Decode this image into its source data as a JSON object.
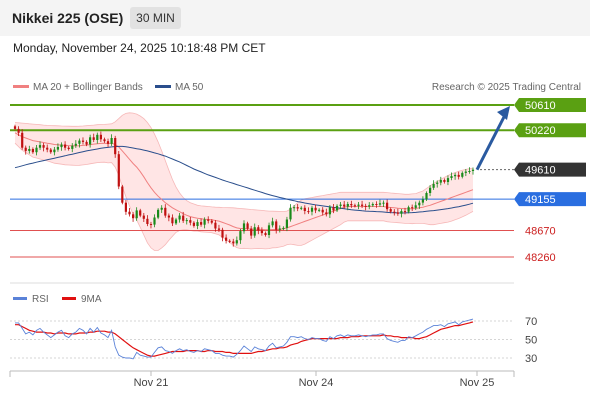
{
  "header": {
    "title": "Nikkei 225 (OSE)",
    "timeframe": "30 MIN",
    "datetime": "Monday, November 24, 2025 10:18:48 PM CET"
  },
  "legend": {
    "bollinger": "MA 20 + Bollinger Bands",
    "ma50": "MA 50",
    "credit": "Research © 2025 Trading Central",
    "rsi": "RSI",
    "ma9": "9MA"
  },
  "colors": {
    "bollinger": "#f08080",
    "band_fill": "#ffe0e0",
    "ma50": "#2a4e8c",
    "resistance": "#5aa012",
    "support": "#e05050",
    "pivot": "#2a6ee0",
    "current": "#333333",
    "arrow": "#2a5aa0",
    "rsi": "#5a82d8",
    "rsi_ma": "#e01010",
    "bull": "#1a8a1a",
    "bear": "#c01010"
  },
  "chart_data": [
    {
      "type": "candlestick",
      "title": "Nikkei 225 (OSE)",
      "x_ticks": [
        "Nov 21",
        "Nov 24",
        "Nov 25"
      ],
      "levels": [
        {
          "label": "50610",
          "value": 50610,
          "kind": "resistance"
        },
        {
          "label": "50220",
          "value": 50220,
          "kind": "resistance"
        },
        {
          "label": "49610",
          "value": 49610,
          "kind": "current"
        },
        {
          "label": "49155",
          "value": 49155,
          "kind": "pivot"
        },
        {
          "label": "48670",
          "value": 48670,
          "kind": "support"
        },
        {
          "label": "48260",
          "value": 48260,
          "kind": "support"
        }
      ],
      "close": [
        50240,
        50180,
        49950,
        49900,
        49930,
        49880,
        49950,
        49990,
        49950,
        49920,
        49880,
        49920,
        49960,
        50000,
        49950,
        49930,
        49980,
        50010,
        50060,
        50040,
        50000,
        50110,
        50070,
        50150,
        50080,
        50050,
        50010,
        50100,
        49850,
        49350,
        49100,
        48960,
        48920,
        48860,
        48980,
        48900,
        48850,
        48770,
        48760,
        48870,
        48990,
        49020,
        48900,
        48870,
        48780,
        48840,
        48900,
        48820,
        48830,
        48790,
        48740,
        48800,
        48760,
        48840,
        48820,
        48790,
        48700,
        48680,
        48560,
        48510,
        48500,
        48470,
        48520,
        48660,
        48780,
        48700,
        48590,
        48720,
        48670,
        48630,
        48600,
        48750,
        48810,
        48680,
        48700,
        48710,
        48840,
        49020,
        49030,
        49010,
        49020,
        48970,
        48960,
        49020,
        48980,
        48990,
        48950,
        48920,
        49030,
        48980,
        49050,
        49070,
        49040,
        49080,
        49060,
        49050,
        49070,
        49050,
        49040,
        49060,
        49080,
        49070,
        49090,
        49100,
        49000,
        48960,
        48950,
        48930,
        48970,
        48960,
        49030,
        49020,
        49060,
        49100,
        49150,
        49250,
        49330,
        49390,
        49410,
        49450,
        49420,
        49480,
        49510,
        49530,
        49500,
        49560,
        49580,
        49590,
        49610
      ],
      "ma20": [
        50180,
        50150,
        50120,
        50100,
        50080,
        50060,
        50050,
        50040,
        50030,
        50020,
        50010,
        50000,
        49995,
        49990,
        49985,
        49982,
        49980,
        49978,
        49980,
        49985,
        49990,
        49998,
        50005,
        50012,
        50016,
        50018,
        50015,
        50020,
        50000,
        49960,
        49900,
        49835,
        49770,
        49705,
        49650,
        49580,
        49500,
        49410,
        49330,
        49260,
        49200,
        49150,
        49100,
        49060,
        49020,
        48990,
        48960,
        48930,
        48905,
        48885,
        48870,
        48860,
        48850,
        48845,
        48840,
        48835,
        48825,
        48815,
        48795,
        48775,
        48755,
        48730,
        48710,
        48700,
        48700,
        48695,
        48690,
        48690,
        48688,
        48685,
        48680,
        48680,
        48685,
        48685,
        48690,
        48695,
        48710,
        48730,
        48750,
        48770,
        48790,
        48810,
        48830,
        48850,
        48870,
        48890,
        48910,
        48930,
        48950,
        48970,
        48990,
        49010,
        49030,
        49040,
        49040,
        49040,
        49040,
        49040,
        49040,
        49040,
        49040,
        49040,
        49040,
        49040,
        49030,
        49025,
        49020,
        49015,
        49010,
        49005,
        49005,
        49005,
        49010,
        49020,
        49030,
        49045,
        49060,
        49080,
        49100,
        49120,
        49140,
        49160,
        49180,
        49200,
        49220,
        49240,
        49260,
        49280,
        49300
      ],
      "bb_upper": [
        50340,
        50335,
        50330,
        50325,
        50320,
        50315,
        50310,
        50305,
        50300,
        50295,
        50292,
        50290,
        50288,
        50286,
        50284,
        50282,
        50281,
        50280,
        50282,
        50286,
        50290,
        50295,
        50300,
        50305,
        50308,
        50310,
        50315,
        50320,
        50350,
        50400,
        50450,
        50480,
        50490,
        50485,
        50470,
        50440,
        50400,
        50340,
        50260,
        50160,
        50040,
        49900,
        49750,
        49600,
        49460,
        49340,
        49250,
        49180,
        49130,
        49100,
        49080,
        49060,
        49050,
        49045,
        49040,
        49035,
        49030,
        49028,
        49026,
        49024,
        49022,
        49020,
        49015,
        49010,
        49005,
        49000,
        48995,
        48990,
        48985,
        48980,
        48975,
        48970,
        48968,
        48966,
        48965,
        48964,
        48970,
        49000,
        49050,
        49100,
        49140,
        49160,
        49170,
        49180,
        49190,
        49200,
        49210,
        49220,
        49230,
        49240,
        49250,
        49260,
        49260,
        49260,
        49260,
        49260,
        49260,
        49260,
        49260,
        49260,
        49260,
        49260,
        49260,
        49260,
        49255,
        49250,
        49245,
        49240,
        49235,
        49230,
        49230,
        49235,
        49240,
        49260,
        49280,
        49320,
        49360,
        49400,
        49430,
        49460,
        49490,
        49520,
        49545,
        49565,
        49585,
        49600,
        49615,
        49625,
        49635
      ],
      "bb_lower": [
        50020,
        49965,
        49910,
        49875,
        49840,
        49805,
        49790,
        49775,
        49760,
        49745,
        49728,
        49710,
        49702,
        49694,
        49686,
        49682,
        49679,
        49676,
        49678,
        49684,
        49690,
        49701,
        49710,
        49719,
        49724,
        49726,
        49715,
        49720,
        49650,
        49520,
        49350,
        49190,
        49050,
        48925,
        48830,
        48720,
        48600,
        48480,
        48400,
        48360,
        48360,
        48400,
        48450,
        48520,
        48580,
        48640,
        48670,
        48680,
        48680,
        48670,
        48660,
        48660,
        48650,
        48645,
        48640,
        48635,
        48620,
        48602,
        48564,
        48526,
        48488,
        48440,
        48405,
        48390,
        48395,
        48390,
        48385,
        48390,
        48391,
        48390,
        48385,
        48390,
        48402,
        48404,
        48415,
        48426,
        48450,
        48460,
        48450,
        48440,
        48440,
        48460,
        48490,
        48520,
        48550,
        48580,
        48610,
        48640,
        48670,
        48700,
        48730,
        48760,
        48800,
        48820,
        48820,
        48820,
        48820,
        48820,
        48820,
        48820,
        48820,
        48820,
        48820,
        48820,
        48805,
        48800,
        48795,
        48790,
        48785,
        48780,
        48780,
        48775,
        48780,
        48780,
        48780,
        48770,
        48760,
        48760,
        48770,
        48780,
        48790,
        48800,
        48815,
        48835,
        48855,
        48880,
        48905,
        48935,
        48965
      ],
      "ma50": [
        49640,
        49655,
        49670,
        49685,
        49700,
        49712,
        49725,
        49738,
        49750,
        49762,
        49775,
        49788,
        49800,
        49812,
        49825,
        49838,
        49850,
        49862,
        49875,
        49888,
        49900,
        49910,
        49920,
        49930,
        49940,
        49948,
        49955,
        49962,
        49967,
        49970,
        49970,
        49965,
        49955,
        49945,
        49935,
        49925,
        49912,
        49900,
        49885,
        49870,
        49855,
        49837,
        49820,
        49797,
        49775,
        49752,
        49730,
        49703,
        49675,
        49648,
        49620,
        49597,
        49575,
        49552,
        49530,
        49510,
        49490,
        49470,
        49450,
        49432,
        49415,
        49398,
        49380,
        49363,
        49345,
        49328,
        49310,
        49293,
        49275,
        49258,
        49240,
        49225,
        49210,
        49195,
        49180,
        49167,
        49155,
        49142,
        49130,
        49117,
        49105,
        49095,
        49085,
        49075,
        49065,
        49058,
        49050,
        49043,
        49035,
        49027,
        49020,
        49013,
        49005,
        48998,
        48990,
        48985,
        48980,
        48975,
        48970,
        48967,
        48965,
        48962,
        48960,
        48955,
        48950,
        48947,
        48945,
        48942,
        48940,
        48942,
        48945,
        48947,
        48950,
        48955,
        48960,
        48966,
        48972,
        48978,
        48985,
        48993,
        49001,
        49009,
        49018,
        49028,
        49038,
        49050,
        49063,
        49077,
        49092
      ]
    },
    {
      "type": "line",
      "title": "RSI",
      "series": [
        {
          "name": "RSI",
          "values": [
            68,
            68,
            62,
            56,
            58,
            55,
            60,
            62,
            58,
            55,
            52,
            55,
            58,
            60,
            54,
            52,
            56,
            58,
            62,
            60,
            56,
            62,
            58,
            63,
            57,
            55,
            52,
            60,
            42,
            33,
            31,
            30,
            30,
            29,
            36,
            33,
            32,
            31,
            31,
            36,
            41,
            42,
            38,
            37,
            35,
            38,
            40,
            38,
            39,
            37,
            36,
            38,
            37,
            40,
            39,
            38,
            35,
            35,
            33,
            32,
            32,
            31,
            34,
            38,
            43,
            40,
            37,
            42,
            40,
            39,
            38,
            43,
            46,
            41,
            42,
            43,
            47,
            53,
            53,
            52,
            53,
            51,
            50,
            52,
            51,
            51,
            49,
            48,
            53,
            51,
            54,
            55,
            53,
            55,
            54,
            54,
            55,
            54,
            53,
            54,
            55,
            55,
            56,
            56,
            51,
            49,
            48,
            47,
            49,
            49,
            53,
            52,
            54,
            56,
            58,
            61,
            63,
            65,
            65,
            66,
            64,
            67,
            68,
            69,
            66,
            69,
            70,
            71,
            72
          ]
        },
        {
          "name": "9MA",
          "values": [
            66,
            66,
            64,
            62,
            60,
            59,
            58,
            58,
            58,
            57,
            57,
            56,
            57,
            57,
            57,
            56,
            56,
            56,
            57,
            57,
            57,
            58,
            58,
            59,
            59,
            59,
            58,
            58,
            56,
            53,
            50,
            47,
            44,
            41,
            39,
            37,
            35,
            33,
            32,
            32,
            33,
            34,
            35,
            36,
            37,
            37,
            37,
            37,
            38,
            38,
            38,
            38,
            37,
            37,
            38,
            38,
            37,
            37,
            37,
            36,
            36,
            35,
            35,
            35,
            35,
            35,
            35,
            36,
            37,
            37,
            38,
            39,
            40,
            40,
            41,
            41,
            42,
            44,
            45,
            46,
            48,
            49,
            50,
            51,
            51,
            51,
            51,
            51,
            51,
            51,
            51,
            52,
            52,
            52,
            53,
            53,
            53,
            54,
            54,
            54,
            54,
            54,
            54,
            55,
            54,
            54,
            53,
            53,
            52,
            52,
            52,
            52,
            51,
            51,
            52,
            53,
            55,
            57,
            59,
            61,
            62,
            63,
            64,
            65,
            65,
            66,
            67,
            68,
            69
          ]
        }
      ],
      "ylim": [
        20,
        80
      ],
      "y_ticks": [
        70,
        50,
        30
      ]
    }
  ]
}
